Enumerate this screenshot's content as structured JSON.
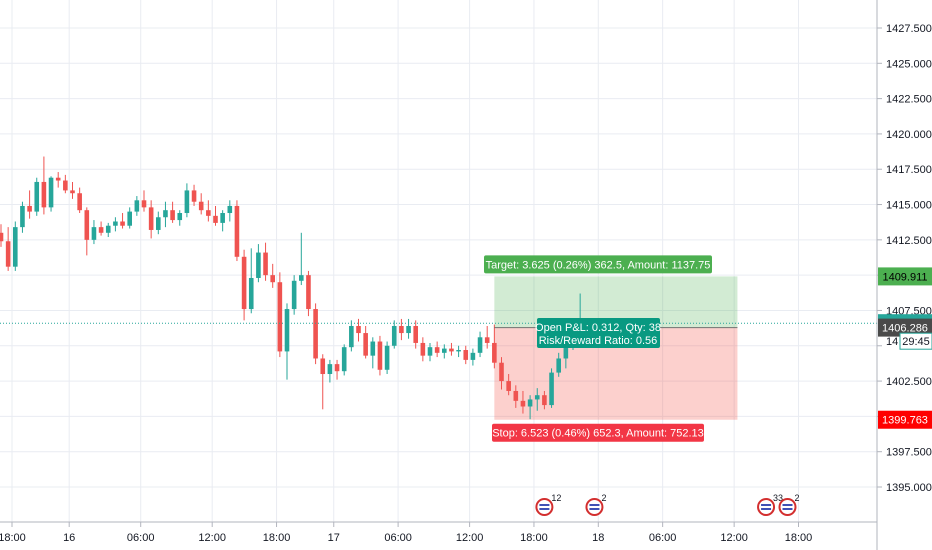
{
  "chart_data": {
    "type": "candlestick",
    "price_axis": {
      "ticks": [
        1395.0,
        1397.5,
        1400.0,
        1402.5,
        1405.0,
        1407.5,
        1410.0,
        1412.5,
        1415.0,
        1417.5,
        1420.0,
        1422.5,
        1425.0,
        1427.5
      ],
      "tick_labels": [
        "1395.000",
        "1397.500",
        "",
        "1402.500",
        "",
        "1407.500",
        "",
        "1412.500",
        "1415.000",
        "1417.500",
        "1420.000",
        "1422.500",
        "1425.000",
        "1427.500"
      ],
      "range": [
        1393.0,
        1430.0
      ]
    },
    "time_axis": {
      "tick_labels": [
        "18:00",
        "16",
        "06:00",
        "12:00",
        "18:00",
        "17",
        "06:00",
        "12:00",
        "18:00",
        "18",
        "06:00",
        "12:00",
        "18:00"
      ],
      "tick_index": [
        0,
        8,
        18,
        28,
        37,
        45,
        54,
        64,
        73,
        82,
        91,
        101,
        110
      ]
    },
    "candles": [
      {
        "o": 1413.0,
        "h": 1413.6,
        "l": 1412.0,
        "c": 1412.4
      },
      {
        "o": 1412.4,
        "h": 1413.4,
        "l": 1410.3,
        "c": 1410.6
      },
      {
        "o": 1410.6,
        "h": 1413.8,
        "l": 1410.3,
        "c": 1413.4
      },
      {
        "o": 1413.4,
        "h": 1415.2,
        "l": 1413.0,
        "c": 1414.9
      },
      {
        "o": 1414.9,
        "h": 1416.0,
        "l": 1414.0,
        "c": 1414.5
      },
      {
        "o": 1414.5,
        "h": 1416.9,
        "l": 1414.2,
        "c": 1416.6
      },
      {
        "o": 1416.6,
        "h": 1418.4,
        "l": 1414.3,
        "c": 1414.8
      },
      {
        "o": 1414.8,
        "h": 1417.0,
        "l": 1414.5,
        "c": 1416.9
      },
      {
        "o": 1416.9,
        "h": 1417.3,
        "l": 1416.2,
        "c": 1416.7
      },
      {
        "o": 1416.7,
        "h": 1417.1,
        "l": 1415.8,
        "c": 1416.0
      },
      {
        "o": 1416.0,
        "h": 1416.6,
        "l": 1415.4,
        "c": 1415.8
      },
      {
        "o": 1415.8,
        "h": 1416.2,
        "l": 1414.4,
        "c": 1414.6
      },
      {
        "o": 1414.6,
        "h": 1414.8,
        "l": 1411.4,
        "c": 1412.5
      },
      {
        "o": 1412.5,
        "h": 1413.9,
        "l": 1412.2,
        "c": 1413.4
      },
      {
        "o": 1413.4,
        "h": 1413.8,
        "l": 1412.8,
        "c": 1413.0
      },
      {
        "o": 1413.0,
        "h": 1413.7,
        "l": 1412.7,
        "c": 1413.5
      },
      {
        "o": 1413.5,
        "h": 1414.1,
        "l": 1413.1,
        "c": 1413.8
      },
      {
        "o": 1413.8,
        "h": 1414.4,
        "l": 1413.3,
        "c": 1413.5
      },
      {
        "o": 1413.5,
        "h": 1414.8,
        "l": 1413.3,
        "c": 1414.5
      },
      {
        "o": 1414.5,
        "h": 1415.6,
        "l": 1414.2,
        "c": 1415.3
      },
      {
        "o": 1415.3,
        "h": 1416.0,
        "l": 1414.5,
        "c": 1414.8
      },
      {
        "o": 1414.8,
        "h": 1415.3,
        "l": 1412.6,
        "c": 1413.2
      },
      {
        "o": 1413.2,
        "h": 1414.5,
        "l": 1412.9,
        "c": 1414.1
      },
      {
        "o": 1414.1,
        "h": 1415.2,
        "l": 1413.4,
        "c": 1414.6
      },
      {
        "o": 1414.6,
        "h": 1415.2,
        "l": 1413.7,
        "c": 1413.9
      },
      {
        "o": 1413.9,
        "h": 1414.6,
        "l": 1413.5,
        "c": 1414.4
      },
      {
        "o": 1414.4,
        "h": 1416.5,
        "l": 1414.1,
        "c": 1416.0
      },
      {
        "o": 1416.0,
        "h": 1416.4,
        "l": 1414.9,
        "c": 1415.2
      },
      {
        "o": 1415.2,
        "h": 1415.8,
        "l": 1414.3,
        "c": 1414.6
      },
      {
        "o": 1414.6,
        "h": 1415.3,
        "l": 1413.8,
        "c": 1414.2
      },
      {
        "o": 1414.2,
        "h": 1414.9,
        "l": 1413.5,
        "c": 1413.7
      },
      {
        "o": 1413.7,
        "h": 1414.6,
        "l": 1413.1,
        "c": 1414.4
      },
      {
        "o": 1414.4,
        "h": 1415.3,
        "l": 1413.8,
        "c": 1414.9
      },
      {
        "o": 1414.9,
        "h": 1415.3,
        "l": 1411.0,
        "c": 1411.3
      },
      {
        "o": 1411.3,
        "h": 1411.8,
        "l": 1406.8,
        "c": 1407.6
      },
      {
        "o": 1407.6,
        "h": 1411.9,
        "l": 1407.3,
        "c": 1409.8
      },
      {
        "o": 1409.8,
        "h": 1412.2,
        "l": 1409.5,
        "c": 1411.6
      },
      {
        "o": 1411.6,
        "h": 1412.3,
        "l": 1409.6,
        "c": 1410.0
      },
      {
        "o": 1410.0,
        "h": 1410.8,
        "l": 1409.1,
        "c": 1409.5
      },
      {
        "o": 1409.5,
        "h": 1410.2,
        "l": 1404.2,
        "c": 1404.6
      },
      {
        "o": 1404.6,
        "h": 1408.0,
        "l": 1402.6,
        "c": 1407.6
      },
      {
        "o": 1407.6,
        "h": 1410.0,
        "l": 1407.2,
        "c": 1409.6
      },
      {
        "o": 1409.6,
        "h": 1413.0,
        "l": 1409.3,
        "c": 1410.0
      },
      {
        "o": 1410.0,
        "h": 1410.3,
        "l": 1407.1,
        "c": 1407.6
      },
      {
        "o": 1407.6,
        "h": 1408.0,
        "l": 1403.7,
        "c": 1404.1
      },
      {
        "o": 1404.1,
        "h": 1404.4,
        "l": 1400.5,
        "c": 1403.0
      },
      {
        "o": 1403.0,
        "h": 1404.0,
        "l": 1402.4,
        "c": 1403.7
      },
      {
        "o": 1403.7,
        "h": 1404.0,
        "l": 1402.6,
        "c": 1403.2
      },
      {
        "o": 1403.2,
        "h": 1405.1,
        "l": 1402.9,
        "c": 1404.9
      },
      {
        "o": 1404.9,
        "h": 1406.8,
        "l": 1404.6,
        "c": 1406.4
      },
      {
        "o": 1406.4,
        "h": 1406.9,
        "l": 1405.3,
        "c": 1405.9
      },
      {
        "o": 1405.9,
        "h": 1406.4,
        "l": 1404.1,
        "c": 1404.3
      },
      {
        "o": 1404.3,
        "h": 1405.6,
        "l": 1403.4,
        "c": 1405.3
      },
      {
        "o": 1405.3,
        "h": 1405.7,
        "l": 1402.9,
        "c": 1403.3
      },
      {
        "o": 1403.3,
        "h": 1405.3,
        "l": 1403.0,
        "c": 1405.0
      },
      {
        "o": 1405.0,
        "h": 1406.8,
        "l": 1404.8,
        "c": 1406.4
      },
      {
        "o": 1406.4,
        "h": 1406.9,
        "l": 1405.4,
        "c": 1405.9
      },
      {
        "o": 1405.9,
        "h": 1406.9,
        "l": 1405.5,
        "c": 1406.4
      },
      {
        "o": 1406.4,
        "h": 1406.8,
        "l": 1404.8,
        "c": 1405.2
      },
      {
        "o": 1405.2,
        "h": 1405.6,
        "l": 1403.9,
        "c": 1404.3
      },
      {
        "o": 1404.3,
        "h": 1405.2,
        "l": 1403.9,
        "c": 1404.9
      },
      {
        "o": 1404.9,
        "h": 1405.3,
        "l": 1404.2,
        "c": 1404.5
      },
      {
        "o": 1404.5,
        "h": 1405.1,
        "l": 1404.1,
        "c": 1404.8
      },
      {
        "o": 1404.8,
        "h": 1405.2,
        "l": 1404.3,
        "c": 1404.6
      },
      {
        "o": 1404.6,
        "h": 1405.0,
        "l": 1404.2,
        "c": 1404.7
      },
      {
        "o": 1404.7,
        "h": 1405.0,
        "l": 1403.7,
        "c": 1404.0
      },
      {
        "o": 1404.0,
        "h": 1404.8,
        "l": 1403.6,
        "c": 1404.5
      },
      {
        "o": 1404.5,
        "h": 1406.0,
        "l": 1404.2,
        "c": 1405.6
      },
      {
        "o": 1405.6,
        "h": 1406.4,
        "l": 1404.8,
        "c": 1405.2
      },
      {
        "o": 1405.2,
        "h": 1406.5,
        "l": 1403.4,
        "c": 1403.8
      },
      {
        "o": 1403.8,
        "h": 1404.2,
        "l": 1401.9,
        "c": 1402.5
      },
      {
        "o": 1402.5,
        "h": 1403.0,
        "l": 1401.5,
        "c": 1401.8
      },
      {
        "o": 1401.8,
        "h": 1402.2,
        "l": 1400.6,
        "c": 1401.1
      },
      {
        "o": 1401.1,
        "h": 1401.8,
        "l": 1400.2,
        "c": 1400.7
      },
      {
        "o": 1400.7,
        "h": 1401.5,
        "l": 1399.8,
        "c": 1401.2
      },
      {
        "o": 1401.2,
        "h": 1402.0,
        "l": 1400.4,
        "c": 1401.5
      },
      {
        "o": 1401.5,
        "h": 1401.8,
        "l": 1400.5,
        "c": 1400.8
      },
      {
        "o": 1400.8,
        "h": 1403.4,
        "l": 1400.6,
        "c": 1403.1
      },
      {
        "o": 1403.1,
        "h": 1404.5,
        "l": 1402.8,
        "c": 1404.1
      },
      {
        "o": 1404.1,
        "h": 1405.6,
        "l": 1403.4,
        "c": 1405.0
      },
      {
        "o": 1405.0,
        "h": 1406.5,
        "l": 1404.7,
        "c": 1406.1
      },
      {
        "o": 1406.1,
        "h": 1408.7,
        "l": 1405.9,
        "c": 1406.6
      },
      {
        "o": 1406.6,
        "h": 1406.8,
        "l": 1406.3,
        "c": 1406.6
      }
    ],
    "position": {
      "entry": 1406.286,
      "target": 1409.911,
      "stop": 1399.763,
      "start_index": 69,
      "end_index": 103,
      "target_label": "Target: 3.625 (0.26%) 362.5, Amount: 1137.75",
      "stop_label": "Stop: 6.523 (0.46%) 652.3, Amount: 752.13",
      "pnl_label": "Open P&L: 0.312, Qty: 38",
      "rr_label": "Risk/Reward Ratio: 0.56"
    },
    "current_price": 1406.598,
    "price_tags": [
      {
        "value": 1409.911,
        "label": "1409.911",
        "bg": "#4caf50",
        "fg": "#000000"
      },
      {
        "value": 1406.598,
        "label": "1406.598",
        "bg": "#26a69a",
        "fg": "#ffffff"
      },
      {
        "value": 1406.286,
        "label": "1406.286",
        "bg": "#4a4a4a",
        "fg": "#ffffff"
      },
      {
        "value": 1399.763,
        "label": "1399.763",
        "bg": "#ff0000",
        "fg": "#ffffff"
      }
    ],
    "countdown": "29:45",
    "partial_tick": "14",
    "events": [
      {
        "index": 76,
        "count": "12"
      },
      {
        "index": 83,
        "count": "2"
      },
      {
        "index": 107,
        "count": "33"
      },
      {
        "index": 110,
        "count": "2"
      }
    ],
    "colors": {
      "up": "#26a69a",
      "down": "#ef5350",
      "grid": "#e9ecf2",
      "target_zone": "rgba(76,175,80,0.25)",
      "stop_zone": "rgba(244,67,54,0.25)"
    }
  }
}
